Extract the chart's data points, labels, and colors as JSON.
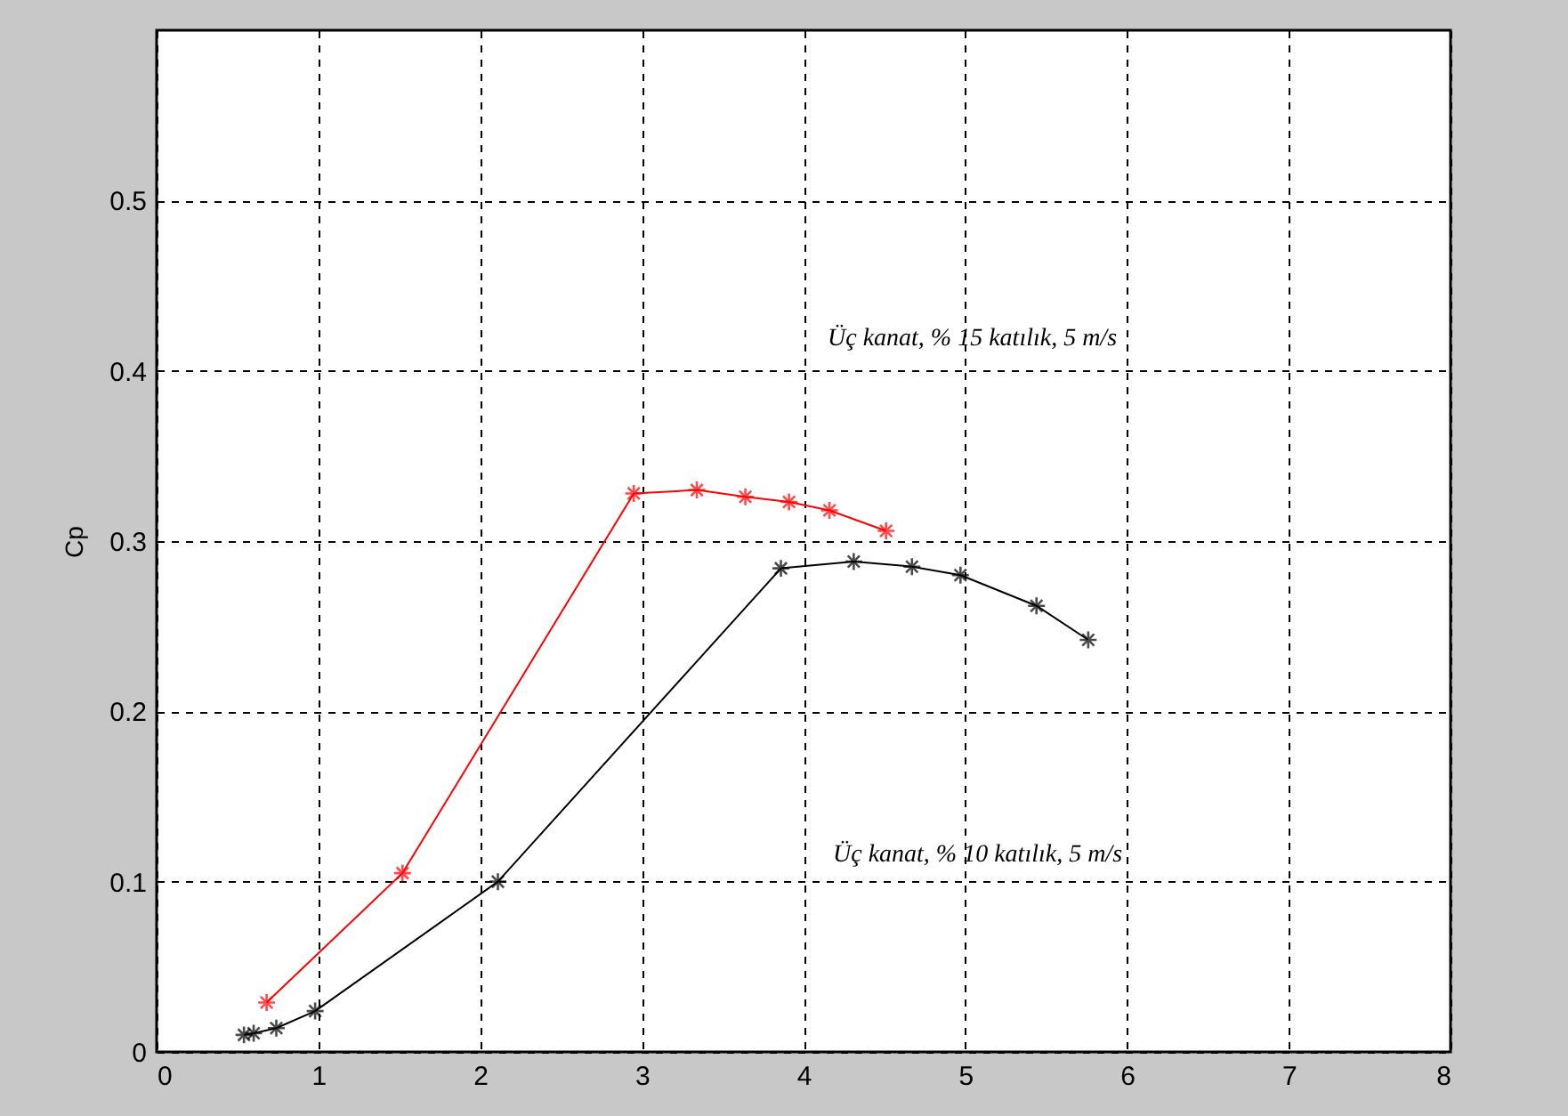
{
  "chart_data": {
    "type": "line",
    "ylabel": "Cp",
    "xlim": [
      0,
      8
    ],
    "xticks": [
      0,
      1,
      2,
      3,
      4,
      5,
      6,
      7,
      8
    ],
    "ylim": [
      0,
      0.6
    ],
    "yticks": [
      0,
      0.1,
      0.2,
      0.3,
      0.4,
      0.5
    ],
    "grid": true,
    "marker": "cross",
    "line_style": "solid",
    "series": [
      {
        "color": "#ff0000",
        "x": [
          0.68,
          1.52,
          2.95,
          3.34,
          3.64,
          3.91,
          4.16,
          4.51
        ],
        "values": [
          0.029,
          0.105,
          0.328,
          0.33,
          0.326,
          0.323,
          0.318,
          0.306
        ]
      },
      {
        "color": "#000000",
        "x": [
          0.54,
          0.6,
          0.74,
          0.98,
          2.11,
          3.86,
          4.31,
          4.67,
          4.97,
          5.44,
          5.76
        ],
        "values": [
          0.01,
          0.011,
          0.014,
          0.024,
          0.1,
          0.284,
          0.288,
          0.285,
          0.28,
          0.262,
          0.242
        ]
      }
    ],
    "annotations": [
      "Üç kanat, % 15 katılık, 5 m/s",
      "Üç kanat, % 10 katılık, 5 m/s"
    ]
  }
}
